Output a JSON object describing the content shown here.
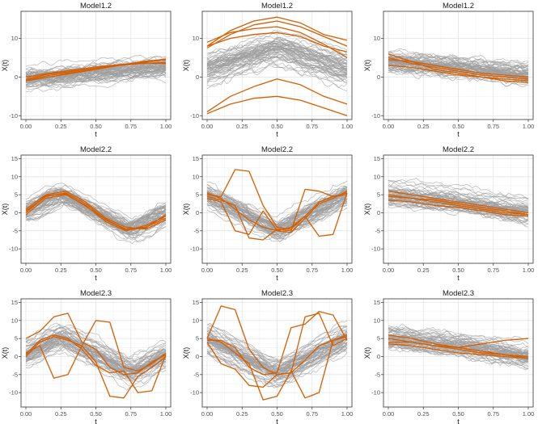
{
  "colors": {
    "outlier": "#D55E00",
    "normal": "#9E9E9E",
    "grid_major": "#E3E3E3",
    "grid_minor": "#F1F1F1",
    "panel_border": "#333333",
    "text": "#1A1A1A",
    "tick_text": "#4D4D4D"
  },
  "chart_data": [
    {
      "title": "Model1.2",
      "type": "line",
      "xlabel": "t",
      "ylabel": "X(t)",
      "ylim": [
        -11,
        17
      ],
      "yticks": [
        -10,
        0,
        10
      ],
      "xticks": [
        0,
        0.25,
        0.5,
        0.75,
        1
      ],
      "xtick_labels": [
        "0.00",
        "0.25",
        "0.50",
        "0.75",
        "1.00"
      ],
      "ytick_labels": [
        "-10",
        "0",
        "10"
      ],
      "normal_curves": {
        "count": 60,
        "mean": [
          -0.5,
          2.5
        ],
        "spread": 1.2
      },
      "outlier_curves": [
        [
          -0.5,
          0.8,
          1.5,
          2.3,
          3.0,
          3.5,
          3.8
        ],
        [
          -0.8,
          0.4,
          1.2,
          2.0,
          3.0,
          3.8,
          4.5
        ],
        [
          0.0,
          1.0,
          1.8,
          2.6,
          3.2,
          3.6,
          3.5
        ],
        [
          -1.0,
          0.0,
          1.0,
          2.0,
          3.0,
          4.0,
          4.6
        ]
      ]
    },
    {
      "title": "Model1.2",
      "type": "line",
      "xlabel": "t",
      "ylabel": "X(t)",
      "ylim": [
        -11,
        17
      ],
      "yticks": [
        -10,
        0,
        10
      ],
      "xticks": [
        0,
        0.25,
        0.5,
        0.75,
        1
      ],
      "xtick_labels": [
        "0.00",
        "0.25",
        "0.50",
        "0.75",
        "1.00"
      ],
      "ytick_labels": [
        "-10",
        "0",
        "10"
      ],
      "normal_curves": {
        "count": 60,
        "mean": [
          2.0,
          7.5,
          2.0
        ],
        "spread": 2.0
      },
      "outlier_curves": [
        [
          8.0,
          12.0,
          14.5,
          15.5,
          14.0,
          11.0,
          9.5
        ],
        [
          7.5,
          11.0,
          13.5,
          14.5,
          13.0,
          10.5,
          8.0
        ],
        [
          9.0,
          11.5,
          12.5,
          13.0,
          11.5,
          8.5,
          5.0
        ],
        [
          8.0,
          10.0,
          11.0,
          11.5,
          10.5,
          8.0,
          6.5
        ],
        [
          -9.0,
          -5.0,
          -2.5,
          -0.5,
          -2.0,
          -5.0,
          -7.0
        ],
        [
          -9.5,
          -7.0,
          -5.5,
          -5.0,
          -6.0,
          -8.0,
          -10.0
        ]
      ]
    },
    {
      "title": "Model1.2",
      "type": "line",
      "xlabel": "t",
      "ylabel": "X(t)",
      "ylim": [
        -11,
        17
      ],
      "yticks": [
        -10,
        0,
        10
      ],
      "xticks": [
        0,
        0.25,
        0.5,
        0.75,
        1
      ],
      "xtick_labels": [
        "0.00",
        "0.25",
        "0.50",
        "0.75",
        "1.00"
      ],
      "ytick_labels": [
        "-10",
        "0",
        "10"
      ],
      "normal_curves": {
        "count": 60,
        "mean": [
          4.0,
          2.5,
          0.5
        ],
        "spread": 1.2
      },
      "outlier_curves": [
        [
          6.0,
          4.0,
          2.0,
          1.0,
          0.0,
          -1.0,
          -1.5
        ],
        [
          5.0,
          3.5,
          2.5,
          1.5,
          0.5,
          0.0,
          -0.5
        ],
        [
          4.5,
          4.0,
          3.0,
          2.0,
          1.0,
          0.5,
          0.0
        ],
        [
          3.0,
          2.5,
          1.5,
          0.5,
          0.0,
          -0.5,
          -1.0
        ]
      ]
    },
    {
      "title": "Model2.2",
      "type": "line",
      "xlabel": "t",
      "ylabel": "X(t)",
      "ylim": [
        -14,
        16
      ],
      "yticks": [
        -10,
        -5,
        0,
        5,
        10,
        15
      ],
      "xticks": [
        0,
        0.25,
        0.5,
        0.75,
        1
      ],
      "xtick_labels": [
        "0.00",
        "0.25",
        "0.50",
        "0.75",
        "1.00"
      ],
      "ytick_labels": [
        "-10",
        "-5",
        "0",
        "5",
        "10",
        "15"
      ],
      "normal_curves": {
        "count": 60,
        "mean": [
          0.0,
          5.0,
          0.0,
          -5.0,
          0.0
        ],
        "spread": 1.5
      },
      "outlier_curves": [
        [
          0.5,
          4.5,
          5.5,
          2.5,
          -2.0,
          -4.5,
          -4.0,
          -1.5
        ],
        [
          1.0,
          5.0,
          6.0,
          3.0,
          -1.5,
          -4.0,
          -4.5,
          -2.0
        ],
        [
          -0.5,
          4.0,
          5.0,
          2.0,
          -2.5,
          -5.0,
          -3.5,
          -1.0
        ],
        [
          0.0,
          4.8,
          5.2,
          1.8,
          -1.8,
          -4.8,
          -4.2,
          -0.5
        ]
      ]
    },
    {
      "title": "Model2.2",
      "type": "line",
      "xlabel": "t",
      "ylabel": "X(t)",
      "ylim": [
        -14,
        16
      ],
      "yticks": [
        -10,
        -5,
        0,
        5,
        10,
        15
      ],
      "xticks": [
        0,
        0.25,
        0.5,
        0.75,
        1
      ],
      "xtick_labels": [
        "0.00",
        "0.25",
        "0.50",
        "0.75",
        "1.00"
      ],
      "ytick_labels": [
        "-10",
        "-5",
        "0",
        "5",
        "10",
        "15"
      ],
      "normal_curves": {
        "count": 60,
        "mean": [
          5.0,
          0.0,
          -5.0,
          0.0,
          5.0
        ],
        "spread": 1.5
      },
      "outlier_curves": [
        [
          5.0,
          4.5,
          12.0,
          11.5,
          2.0,
          -4.0,
          -4.5,
          -1.0,
          3.0,
          4.5,
          5.5
        ],
        [
          4.0,
          3.0,
          -5.0,
          -6.0,
          0.5,
          -5.0,
          -5.5,
          -1.5,
          2.5,
          4.0,
          6.0
        ],
        [
          4.5,
          3.5,
          2.0,
          -7.0,
          -7.5,
          -4.5,
          -5.0,
          6.5,
          6.0,
          4.5,
          5.0
        ],
        [
          5.5,
          4.0,
          1.0,
          -2.0,
          -4.0,
          -5.0,
          -4.0,
          -1.0,
          -6.5,
          -6.0,
          5.5
        ]
      ]
    },
    {
      "title": "Model2.2",
      "type": "line",
      "xlabel": "t",
      "ylabel": "X(t)",
      "ylim": [
        -14,
        16
      ],
      "yticks": [
        -10,
        -5,
        0,
        5,
        10,
        15
      ],
      "xticks": [
        0,
        0.25,
        0.5,
        0.75,
        1
      ],
      "xtick_labels": [
        "0.00",
        "0.25",
        "0.50",
        "0.75",
        "1.00"
      ],
      "ytick_labels": [
        "-10",
        "-5",
        "0",
        "5",
        "10",
        "15"
      ],
      "normal_curves": {
        "count": 60,
        "mean": [
          5.0,
          3.0,
          0.0
        ],
        "spread": 1.5
      },
      "outlier_curves": [
        [
          6.0,
          5.0,
          4.0,
          3.0,
          2.0,
          1.0,
          0.0
        ],
        [
          5.0,
          4.0,
          3.5,
          2.5,
          1.5,
          0.5,
          -0.5
        ],
        [
          4.5,
          4.0,
          3.0,
          2.0,
          1.0,
          0.0,
          -0.5
        ],
        [
          3.5,
          3.0,
          2.0,
          1.5,
          0.5,
          -0.5,
          -1.0
        ]
      ]
    },
    {
      "title": "Model2.3",
      "type": "line",
      "xlabel": "t",
      "ylabel": "X(t)",
      "ylim": [
        -14,
        16
      ],
      "yticks": [
        -10,
        -5,
        0,
        5,
        10,
        15
      ],
      "xticks": [
        0,
        0.25,
        0.5,
        0.75,
        1
      ],
      "xtick_labels": [
        "0.00",
        "0.25",
        "0.50",
        "0.75",
        "1.00"
      ],
      "ytick_labels": [
        "-10",
        "-5",
        "0",
        "5",
        "10",
        "15"
      ],
      "normal_curves": {
        "count": 60,
        "mean": [
          0.0,
          5.0,
          0.0,
          -5.0,
          0.0
        ],
        "spread": 1.8
      },
      "outlier_curves": [
        [
          5.0,
          7.0,
          11.0,
          12.0,
          4.0,
          2.0,
          -3.0,
          -5.0,
          -4.5,
          -1.5,
          0.5
        ],
        [
          1.0,
          3.0,
          -6.0,
          -5.0,
          3.0,
          10.0,
          9.5,
          -3.0,
          -4.0,
          -2.0,
          1.0
        ],
        [
          0.0,
          4.0,
          5.5,
          4.5,
          3.0,
          -1.5,
          -11.0,
          -11.5,
          -5.5,
          -3.0,
          0.0
        ],
        [
          0.5,
          4.5,
          6.0,
          5.0,
          2.0,
          -2.5,
          -4.5,
          -4.0,
          -10.0,
          -9.5,
          0.5
        ]
      ]
    },
    {
      "title": "Model2.3",
      "type": "line",
      "xlabel": "t",
      "ylabel": "X(t)",
      "ylim": [
        -14,
        16
      ],
      "yticks": [
        -10,
        -5,
        0,
        5,
        10,
        15
      ],
      "xticks": [
        0,
        0.25,
        0.5,
        0.75,
        1
      ],
      "xtick_labels": [
        "0.00",
        "0.25",
        "0.50",
        "0.75",
        "1.00"
      ],
      "ytick_labels": [
        "-10",
        "-5",
        "0",
        "5",
        "10",
        "15"
      ],
      "normal_curves": {
        "count": 60,
        "mean": [
          5.0,
          0.0,
          -5.0,
          0.0,
          5.0
        ],
        "spread": 1.8
      },
      "outlier_curves": [
        [
          5.0,
          14.0,
          13.0,
          2.0,
          -3.0,
          -5.0,
          -4.5,
          -1.0,
          3.0,
          4.5,
          5.5
        ],
        [
          4.0,
          -2.0,
          -3.5,
          -8.0,
          -8.5,
          -5.0,
          -4.5,
          11.0,
          12.0,
          3.0,
          5.0
        ],
        [
          5.0,
          4.0,
          1.0,
          -2.0,
          -12.0,
          -11.0,
          -4.0,
          -11.5,
          -10.0,
          4.5,
          6.0
        ],
        [
          4.5,
          4.5,
          2.5,
          -3.0,
          -5.0,
          -4.5,
          8.0,
          9.0,
          12.5,
          11.5,
          4.5
        ]
      ]
    },
    {
      "title": "Model2.3",
      "type": "line",
      "xlabel": "t",
      "ylabel": "X(t)",
      "ylim": [
        -14,
        16
      ],
      "yticks": [
        -10,
        -5,
        0,
        5,
        10,
        15
      ],
      "xticks": [
        0,
        0.25,
        0.5,
        0.75,
        1
      ],
      "xtick_labels": [
        "0.00",
        "0.25",
        "0.50",
        "0.75",
        "1.00"
      ],
      "ytick_labels": [
        "-10",
        "-5",
        "0",
        "5",
        "10",
        "15"
      ],
      "normal_curves": {
        "count": 60,
        "mean": [
          5.0,
          3.0,
          0.0
        ],
        "spread": 1.5
      },
      "outlier_curves": [
        [
          5.0,
          4.0,
          3.0,
          2.5,
          3.5,
          4.5,
          5.0
        ],
        [
          6.0,
          5.0,
          3.5,
          2.5,
          1.5,
          0.5,
          0.0
        ],
        [
          4.0,
          4.0,
          3.0,
          2.0,
          1.0,
          0.5,
          -0.5
        ],
        [
          3.5,
          3.0,
          2.0,
          1.0,
          0.5,
          0.0,
          -0.5
        ]
      ]
    }
  ]
}
